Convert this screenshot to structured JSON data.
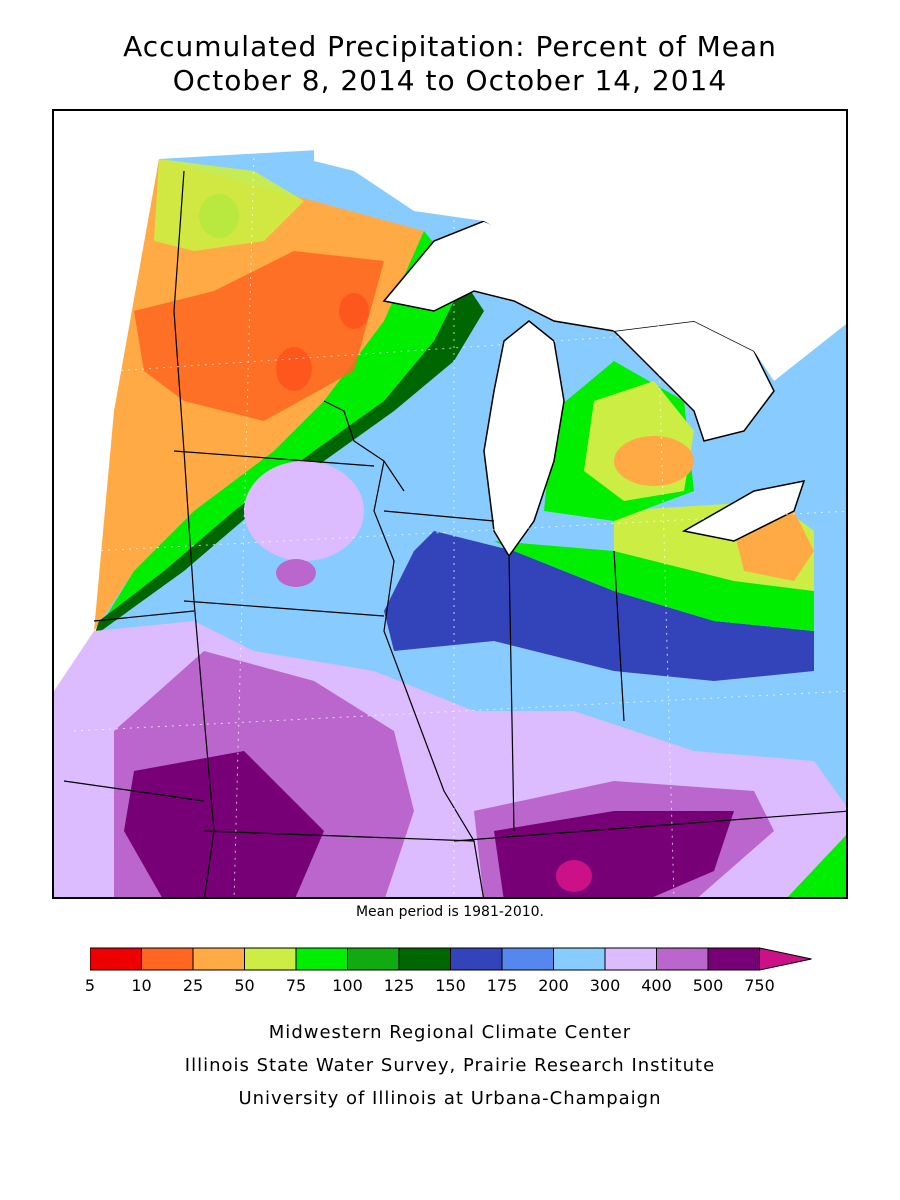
{
  "title_line1": "Accumulated Precipitation: Percent of Mean",
  "title_line2": "October 8, 2014 to October 14, 2014",
  "mean_period_note": "Mean period is 1981-2010.",
  "legend": {
    "labels": [
      "5",
      "10",
      "25",
      "50",
      "75",
      "100",
      "125",
      "150",
      "175",
      "200",
      "300",
      "400",
      "500",
      "750"
    ],
    "colors": [
      "#ee0000",
      "#ff6622",
      "#ffaa44",
      "#ccee44",
      "#00ee00",
      "#11aa11",
      "#006600",
      "#3344bb",
      "#5588ee",
      "#88ccff",
      "#ddbbff",
      "#bb66cc",
      "#770077",
      "#cc1188"
    ]
  },
  "credits": [
    "Midwestern Regional Climate Center",
    "Illinois State Water Survey, Prairie Research Institute",
    "University of Illinois at Urbana-Champaign"
  ]
}
